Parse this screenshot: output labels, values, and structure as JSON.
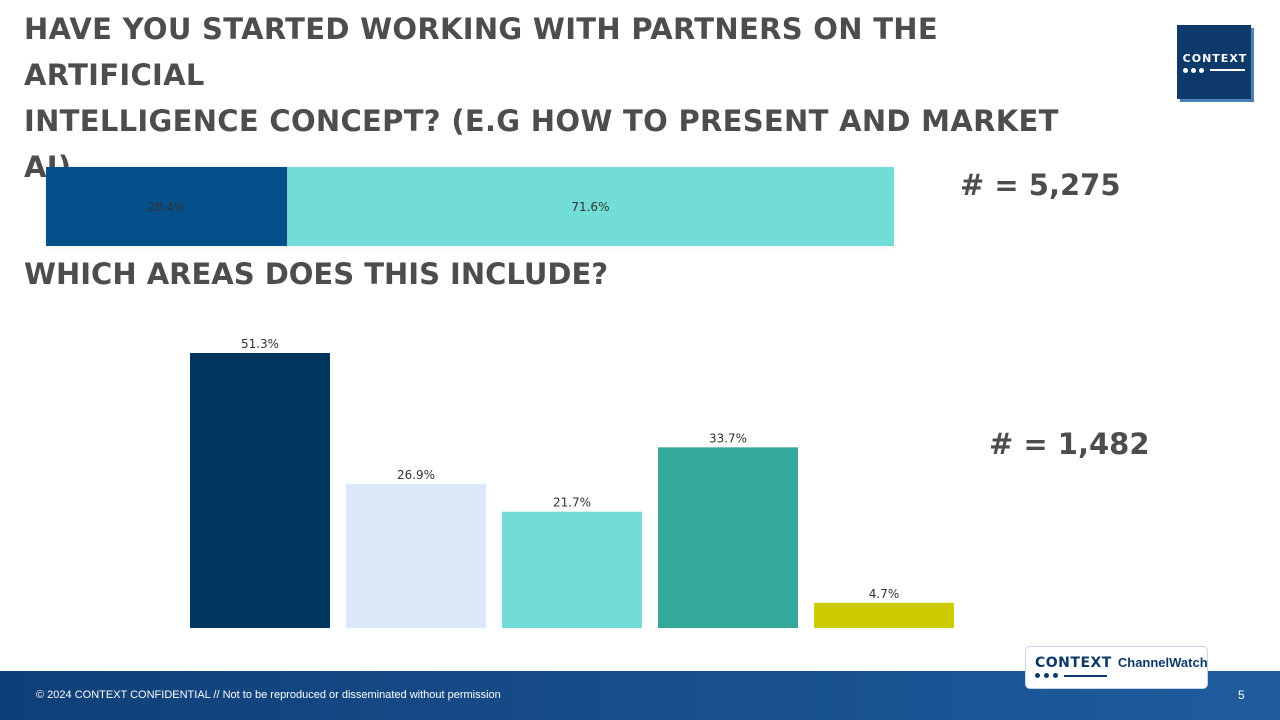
{
  "title": {
    "line1": "HAVE YOU STARTED WORKING WITH PARTNERS ON THE ARTIFICIAL",
    "line2": "INTELLIGENCE CONCEPT? (E.G HOW TO PRESENT AND MARKET AI)"
  },
  "subtitle": "WHICH AREAS DOES THIS INCLUDE?",
  "logo": {
    "text": "CONTEXT"
  },
  "counts": {
    "top": "# = 5,275",
    "bottom": "# = 1,482"
  },
  "colors": {
    "dark_navy": "#003560",
    "navy": "#04508a",
    "light_blue": "#dbe8fa",
    "turquoise": "#72ddd6",
    "teal": "#33a89b",
    "lime": "#cccc00"
  },
  "chart_data": [
    {
      "type": "bar",
      "orientation": "horizontal-stacked",
      "series": [
        {
          "value": 28.4,
          "label": "28.4%",
          "color": "#04508a"
        },
        {
          "value": 71.6,
          "label": "71.6%",
          "color": "#72ddd6"
        }
      ]
    },
    {
      "type": "bar",
      "categories": [
        "",
        "",
        "",
        "",
        ""
      ],
      "values": [
        51.3,
        26.9,
        21.7,
        33.7,
        4.7
      ],
      "labels": [
        "51.3%",
        "26.9%",
        "21.7%",
        "33.7%",
        "4.7%"
      ],
      "colors": [
        "#003560",
        "#dbe8fa",
        "#72ddd6",
        "#33a89b",
        "#cccc00"
      ],
      "ylim": [
        0,
        51.3
      ]
    }
  ],
  "footer": {
    "text": "© 2024 CONTEXT CONFIDENTIAL // Not to be reproduced or disseminated without permission",
    "page": "5",
    "brand": "CONTEXT",
    "product": "ChannelWatch"
  }
}
